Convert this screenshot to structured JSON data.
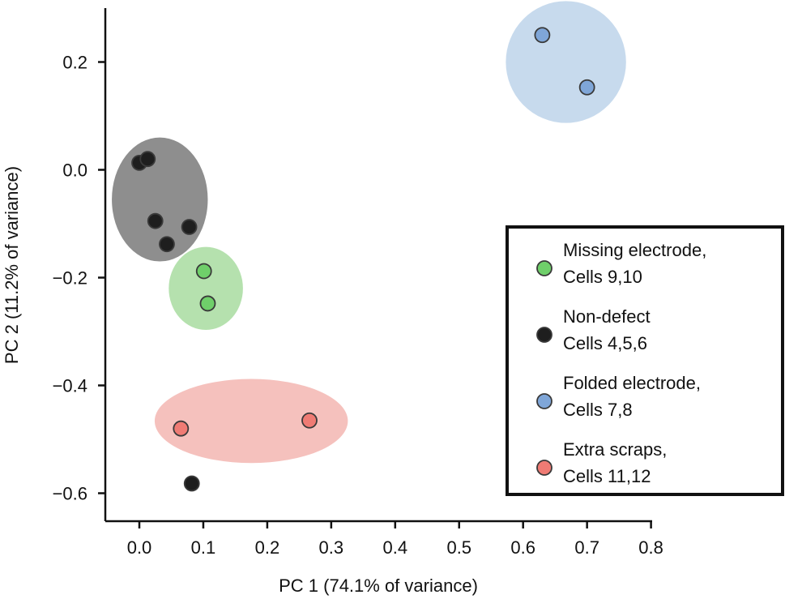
{
  "chart_data": {
    "type": "scatter",
    "title": "",
    "xlabel": "PC 1 (74.1% of variance)",
    "ylabel": "PC 2 (11.2% of variance)",
    "xlim": [
      -0.05,
      0.8
    ],
    "ylim": [
      -0.65,
      0.3
    ],
    "xticks": [
      0.0,
      0.1,
      0.2,
      0.3,
      0.4,
      0.5,
      0.6,
      0.7,
      0.8
    ],
    "xtick_labels": [
      "0.0",
      "0.1",
      "0.2",
      "0.3",
      "0.4",
      "0.5",
      "0.6",
      "0.7",
      "0.8"
    ],
    "yticks": [
      0.2,
      0.0,
      -0.2,
      -0.4,
      -0.6
    ],
    "ytick_labels": [
      "0.2",
      "0.0",
      "−0.2",
      "−0.4",
      "−0.6"
    ],
    "grid": false,
    "legend_position": "right",
    "series": [
      {
        "name": "Missing electrode, Cells 9,10",
        "legend_lines": [
          "Missing electrode,",
          "Cells 9,10"
        ],
        "color": "#6fcf6a",
        "ellipse_color": "#a8dca0",
        "ellipse": {
          "cx": 0.104,
          "cy": -0.22,
          "rx": 0.058,
          "ry": 0.077
        },
        "points": [
          [
            0.101,
            -0.188
          ],
          [
            0.107,
            -0.248
          ]
        ]
      },
      {
        "name": "Non-defect Cells 4,5,6",
        "legend_lines": [
          "Non-defect",
          "Cells 4,5,6"
        ],
        "color": "#1e1e1e",
        "ellipse_color": "#7a7a7a",
        "ellipse": {
          "cx": 0.032,
          "cy": -0.055,
          "rx": 0.075,
          "ry": 0.115
        },
        "points": [
          [
            0.0,
            0.013
          ],
          [
            0.013,
            0.02
          ],
          [
            0.025,
            -0.095
          ],
          [
            0.043,
            -0.138
          ],
          [
            0.078,
            -0.106
          ],
          [
            0.082,
            -0.582
          ]
        ]
      },
      {
        "name": "Folded electrode, Cells 7,8",
        "legend_lines": [
          "Folded electrode,",
          "Cells 7,8"
        ],
        "color": "#7fa6d8",
        "ellipse_color": "#bdd3ea",
        "ellipse": {
          "cx": 0.667,
          "cy": 0.2,
          "rx": 0.094,
          "ry": 0.113
        },
        "points": [
          [
            0.63,
            0.25
          ],
          [
            0.7,
            0.153
          ]
        ]
      },
      {
        "name": "Extra scraps, Cells 11,12",
        "legend_lines": [
          "Extra scraps,",
          "Cells 11,12"
        ],
        "color": "#ef7b74",
        "ellipse_color": "#f3b6b2",
        "ellipse": {
          "cx": 0.175,
          "cy": -0.466,
          "rx": 0.151,
          "ry": 0.078
        },
        "points": [
          [
            0.065,
            -0.48
          ],
          [
            0.266,
            -0.465
          ]
        ]
      }
    ]
  }
}
